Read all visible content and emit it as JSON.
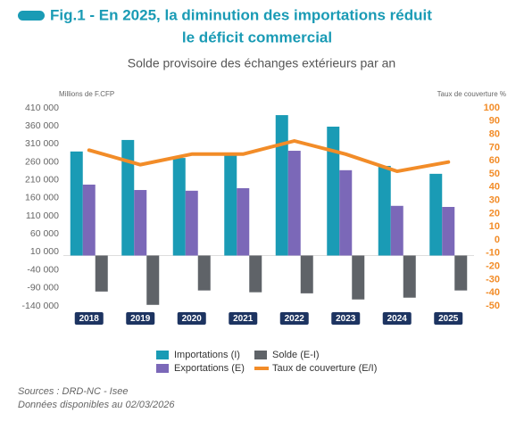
{
  "chart_data": {
    "type": "bar",
    "title": [
      "Fig.1 - En 2025, la diminution des importations réduit",
      "le déficit commercial"
    ],
    "subtitle": "Solde provisoire des échanges extérieurs par an",
    "y_label": "Millions de F.CFP",
    "y2_label": "Taux de couverture %",
    "categories": [
      "2018",
      "2019",
      "2020",
      "2021",
      "2022",
      "2023",
      "2024",
      "2025"
    ],
    "series": [
      {
        "name": "Importations (I)",
        "color": "#1a9bb5",
        "values": [
          289000,
          321000,
          271000,
          281000,
          390000,
          358000,
          249000,
          227000
        ]
      },
      {
        "name": "Exportations (E)",
        "color": "#7b68b8",
        "values": [
          197000,
          182000,
          180000,
          187000,
          291000,
          237000,
          138000,
          135000
        ]
      },
      {
        "name": "Solde (E-I)",
        "color": "#5f6368",
        "values": [
          -100000,
          -137000,
          -97000,
          -102000,
          -105000,
          -122000,
          -117000,
          -97000
        ]
      },
      {
        "name": "Taux de couverture (E/I)",
        "color": "#f28c28",
        "type": "line",
        "axis": "y2",
        "values": [
          68,
          57,
          65,
          65,
          75,
          65,
          52,
          59
        ]
      }
    ],
    "ylim": [
      -140000,
      410000
    ],
    "yticks": [
      {
        "value": 410000,
        "label": "410 000"
      },
      {
        "value": 360000,
        "label": "360 000"
      },
      {
        "value": 310000,
        "label": "310 000"
      },
      {
        "value": 260000,
        "label": "260 000"
      },
      {
        "value": 210000,
        "label": "210 000"
      },
      {
        "value": 160000,
        "label": "160 000"
      },
      {
        "value": 110000,
        "label": "110 000"
      },
      {
        "value": 60000,
        "label": "60 000"
      },
      {
        "value": 10000,
        "label": "10 000"
      },
      {
        "value": -40000,
        "label": "-40 000"
      },
      {
        "value": -90000,
        "label": "-90 000"
      },
      {
        "value": -140000,
        "label": "-140 000"
      }
    ],
    "y2lim": [
      -50,
      100
    ],
    "y2ticks": [
      100,
      90,
      80,
      70,
      60,
      50,
      40,
      30,
      20,
      10,
      0,
      -10,
      -20,
      -30,
      -40,
      -50
    ],
    "grid": false,
    "source": "Sources : DRD-NC - Isee",
    "note": "Données disponibles au 02/03/2026"
  }
}
